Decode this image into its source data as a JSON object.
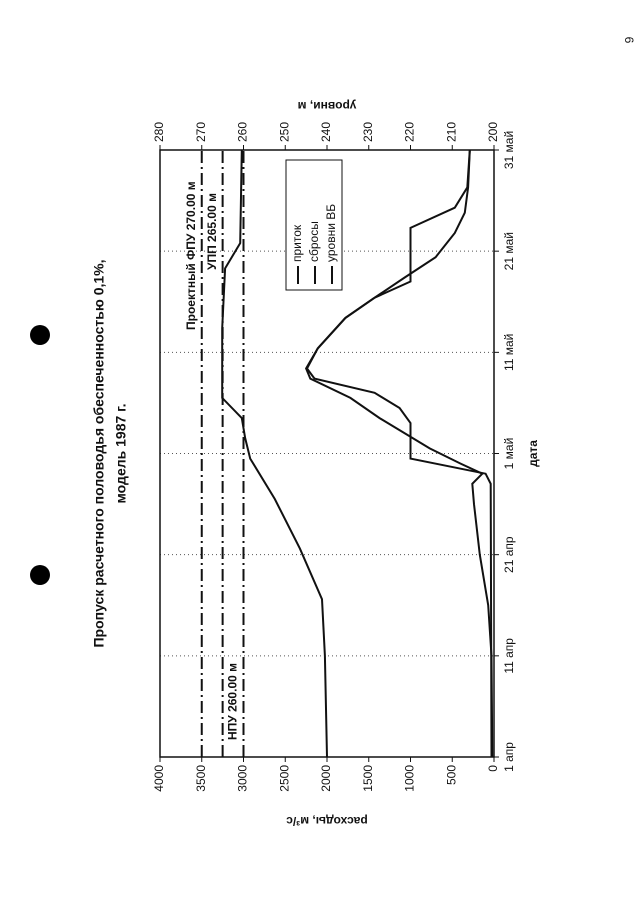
{
  "page_number": "6",
  "chart_data": {
    "type": "line",
    "title": [
      "Пропуск расчетного половодья обеспеченностью 0,1%,",
      "модель 1987 г."
    ],
    "x_label": "дата",
    "y_label": "расходы, м³/с",
    "y2_label": "уровни, м",
    "xlim": [
      0,
      60
    ],
    "xticks": [
      {
        "value": 0,
        "label": "1 апр"
      },
      {
        "value": 10,
        "label": "11 апр"
      },
      {
        "value": 20,
        "label": "21 апр"
      },
      {
        "value": 30,
        "label": "1 май"
      },
      {
        "value": 40,
        "label": "11 май"
      },
      {
        "value": 50,
        "label": "21 май"
      },
      {
        "value": 60,
        "label": "31 май"
      }
    ],
    "ylim": [
      0,
      4000
    ],
    "yticks": [
      0,
      500,
      1000,
      1500,
      2000,
      2500,
      3000,
      3500,
      4000
    ],
    "y2lim": [
      200,
      280
    ],
    "y2ticks": [
      200,
      210,
      220,
      230,
      240,
      250,
      260,
      270,
      280
    ],
    "grid": "x",
    "legend": "top-right",
    "series": [
      {
        "name": "приток",
        "color": "#111111",
        "x": [
          0,
          10,
          15,
          20,
          25,
          27,
          28,
          29,
          30.5,
          33.5,
          35.5,
          37.4,
          38.4,
          40.4,
          43.4,
          45.4,
          47.4,
          49.4,
          51.8,
          53.8,
          56.3,
          60
        ],
        "values": [
          20,
          30,
          70,
          170,
          240,
          260,
          140,
          400,
          770,
          1370,
          1720,
          2200,
          2250,
          2110,
          1780,
          1430,
          1070,
          700,
          470,
          350,
          310,
          290
        ]
      },
      {
        "name": "сбросы",
        "color": "#111111",
        "x": [
          0,
          27,
          28,
          29.5,
          31,
          33,
          34.5,
          36,
          37.4,
          38.4,
          40.4,
          43.4,
          45.4,
          47,
          52.3,
          54.3,
          56.3,
          60
        ],
        "values": [
          30,
          40,
          100,
          1000,
          1000,
          1000,
          1130,
          1430,
          2150,
          2240,
          2110,
          1780,
          1430,
          1000,
          1000,
          470,
          320,
          290
        ]
      },
      {
        "name": "уровни ВБ",
        "color": "#111111",
        "axis": "y2",
        "x": [
          0,
          10,
          15.6,
          20.6,
          25.5,
          29.5,
          31.5,
          33.5,
          35.5,
          42.4,
          48.3,
          50.8,
          60
        ],
        "values": [
          240,
          240.5,
          241.2,
          246.5,
          252.5,
          258.4,
          259.6,
          260.4,
          265.1,
          265.1,
          264.4,
          260.8,
          260.4
        ]
      }
    ],
    "reference_lines": [
      {
        "value": 270,
        "label": "Проектный ФПУ 270.00 м"
      },
      {
        "value": 265,
        "label": "УПП 265.00 м"
      },
      {
        "value": 260,
        "label": "НПУ 260.00 м"
      }
    ]
  }
}
